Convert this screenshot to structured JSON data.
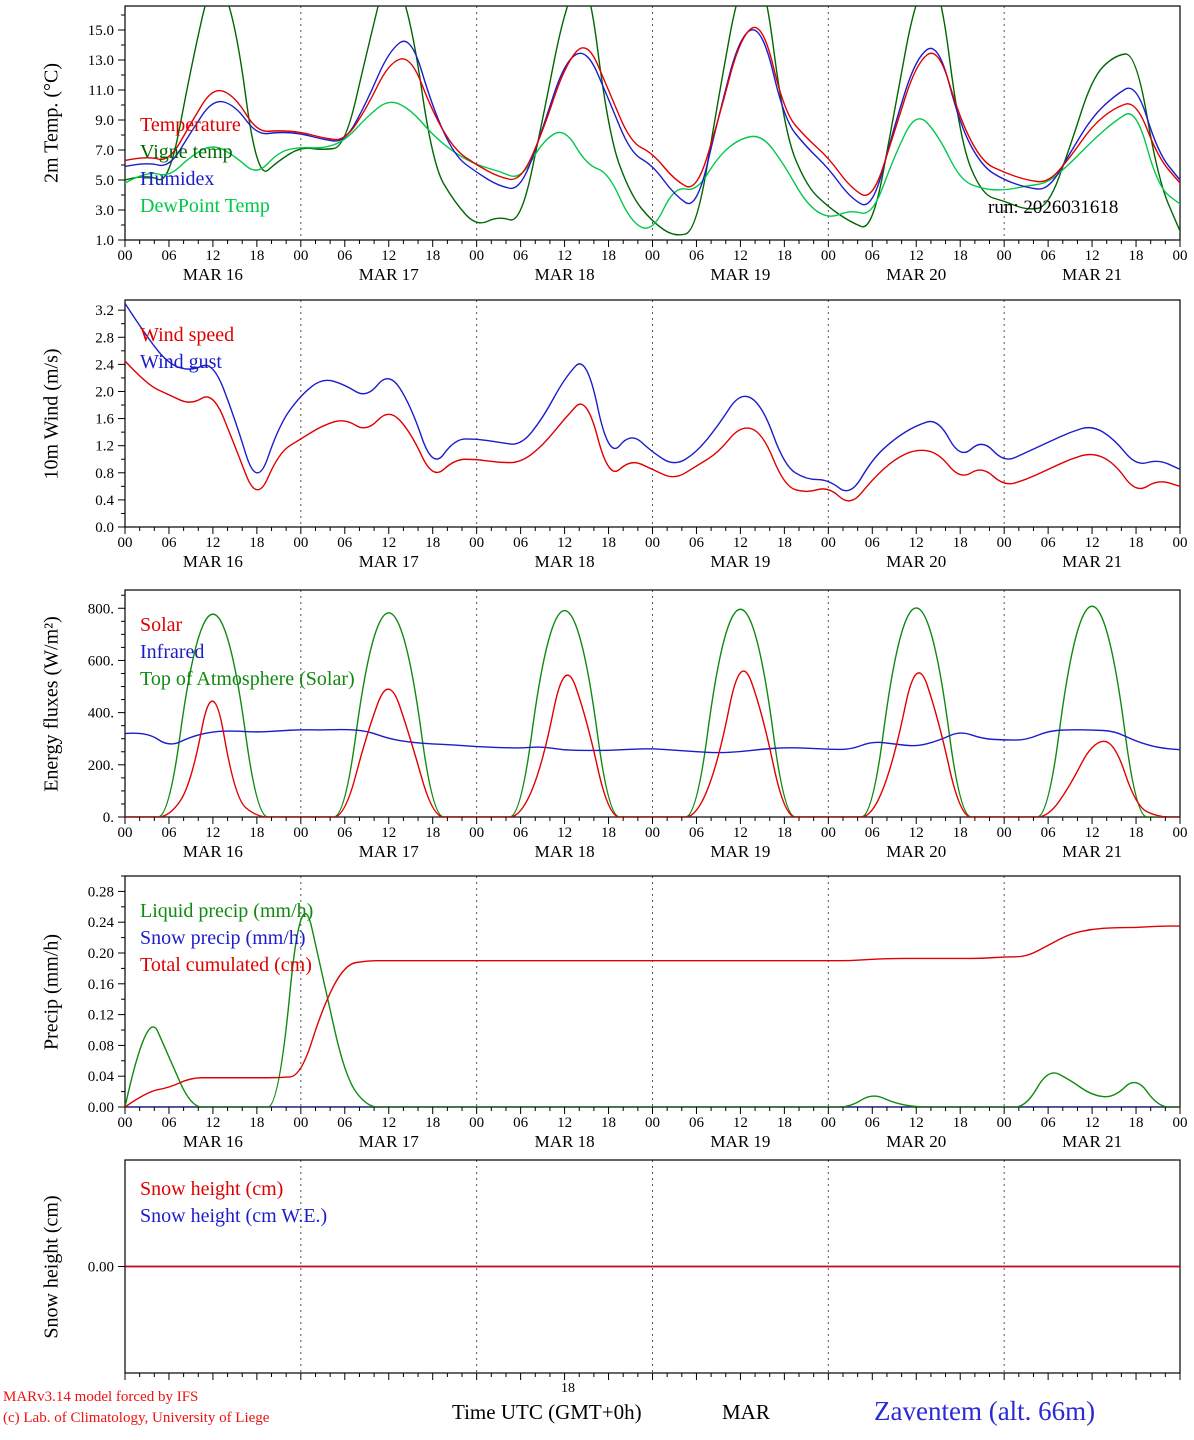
{
  "run_label": "run: 2026031618",
  "footer": {
    "credit_line1": "MARv3.14 model forced by IFS",
    "credit_line2": "(c) Lab. of Climatology, University of Liege",
    "xaxis_title": "Time UTC (GMT+0h)",
    "month_label": "MAR",
    "run_hour": "18",
    "station_label": "Zaventem (alt. 66m)"
  },
  "x_axis": {
    "hours_start": 0,
    "hours_end": 144,
    "x_start": 0,
    "x_step": 3,
    "major_tick_step": 6,
    "minor_tick_step": 2,
    "tick_label_cycle": [
      "00",
      "06",
      "12",
      "18"
    ],
    "day_boundaries": [
      24,
      48,
      72,
      96,
      120
    ],
    "days": [
      {
        "label": "MAR 16",
        "center": 12
      },
      {
        "label": "MAR 17",
        "center": 36
      },
      {
        "label": "MAR 18",
        "center": 60
      },
      {
        "label": "MAR 19",
        "center": 84
      },
      {
        "label": "MAR 20",
        "center": 108
      },
      {
        "label": "MAR 21",
        "center": 132
      }
    ]
  },
  "chart_data": [
    {
      "type": "line",
      "ylabel": "2m Temp. (°C)",
      "ylim": [
        1.0,
        16.6
      ],
      "yticks": [
        1,
        3,
        5,
        7,
        9,
        11,
        13,
        15
      ],
      "ytick_labels": [
        "1.0",
        "3.0",
        "5.0",
        "7.0",
        "9.0",
        "11.0",
        "13.0",
        "15.0"
      ],
      "y_minor_per_gap": 1,
      "legend": [
        {
          "label": "Temperature",
          "color": "#e00000"
        },
        {
          "label": "Vigne temp",
          "color": "#006600"
        },
        {
          "label": "Humidex",
          "color": "#1c1ccc"
        },
        {
          "label": "DewPoint Temp",
          "color": "#00c84b"
        }
      ],
      "series": [
        {
          "name": "vigne_temp",
          "color": "#006600",
          "y": [
            5.0,
            5.4,
            4.7,
            12.5,
            19.0,
            16.0,
            5.0,
            6.3,
            7.2,
            7.0,
            7.2,
            13.5,
            19.5,
            16.0,
            6.0,
            3.5,
            1.9,
            2.6,
            2.1,
            9.0,
            16.5,
            19.5,
            8.0,
            4.0,
            2.2,
            1.2,
            1.6,
            10.5,
            18.5,
            19.5,
            8.2,
            4.6,
            3.2,
            2.2,
            1.6,
            9.5,
            17.5,
            19.0,
            7.5,
            4.0,
            3.6,
            3.0,
            3.2,
            7.2,
            11.8,
            13.3,
            13.5,
            5.0,
            1.6
          ]
        },
        {
          "name": "dewpoint_temp",
          "color": "#00c84b",
          "y": [
            4.8,
            5.6,
            5.2,
            6.6,
            7.4,
            6.6,
            5.3,
            6.9,
            7.2,
            7.1,
            7.6,
            9.2,
            10.4,
            9.7,
            8.0,
            6.8,
            6.0,
            5.6,
            5.0,
            7.6,
            8.5,
            6.0,
            5.5,
            2.2,
            1.5,
            4.6,
            4.2,
            6.6,
            7.8,
            8.0,
            6.0,
            3.4,
            2.4,
            3.0,
            2.6,
            6.6,
            9.6,
            8.0,
            5.0,
            4.4,
            4.3,
            4.6,
            4.8,
            6.1,
            7.6,
            8.9,
            9.8,
            4.5,
            3.4
          ]
        },
        {
          "name": "humidex",
          "color": "#1c1ccc",
          "y": [
            5.9,
            6.2,
            5.8,
            8.2,
            10.4,
            10.0,
            8.0,
            8.2,
            8.1,
            7.7,
            7.5,
            10.2,
            13.6,
            14.7,
            9.8,
            6.6,
            5.5,
            4.6,
            4.3,
            8.4,
            12.9,
            13.8,
            10.4,
            6.8,
            6.0,
            4.0,
            3.0,
            9.2,
            14.8,
            15.2,
            9.0,
            7.2,
            5.8,
            3.8,
            3.0,
            8.6,
            13.2,
            14.2,
            8.6,
            5.9,
            5.0,
            4.5,
            4.3,
            6.8,
            9.2,
            10.6,
            11.5,
            6.8,
            5.0
          ]
        },
        {
          "name": "temperature",
          "color": "#e00000",
          "y": [
            6.3,
            6.6,
            6.2,
            8.8,
            11.2,
            10.6,
            8.2,
            8.3,
            8.2,
            7.8,
            7.6,
            9.8,
            12.8,
            13.3,
            9.5,
            7.0,
            6.0,
            5.2,
            4.9,
            8.2,
            12.6,
            14.4,
            11.0,
            7.5,
            6.8,
            5.0,
            4.2,
            9.0,
            14.6,
            15.6,
            9.5,
            7.8,
            6.5,
            4.5,
            3.6,
            8.2,
            12.8,
            13.9,
            9.0,
            6.2,
            5.5,
            5.0,
            4.8,
            6.5,
            8.6,
            9.8,
            10.3,
            6.5,
            4.8
          ]
        }
      ]
    },
    {
      "type": "line",
      "ylabel": "10m Wind (m/s)",
      "ylim": [
        0.0,
        3.35
      ],
      "yticks": [
        0.0,
        0.4,
        0.8,
        1.2,
        1.6,
        2.0,
        2.4,
        2.8,
        3.2
      ],
      "ytick_labels": [
        "0.0",
        "0.4",
        "0.8",
        "1.2",
        "1.6",
        "2.0",
        "2.4",
        "2.8",
        "3.2"
      ],
      "y_minor_per_gap": 1,
      "legend": [
        {
          "label": "Wind speed",
          "color": "#e00000"
        },
        {
          "label": "Wind gust",
          "color": "#1c1ccc"
        }
      ],
      "series": [
        {
          "name": "wind_gust",
          "color": "#1c1ccc",
          "y": [
            3.3,
            2.8,
            2.4,
            2.3,
            2.45,
            1.6,
            0.55,
            1.5,
            1.95,
            2.2,
            2.1,
            1.9,
            2.3,
            1.8,
            0.85,
            1.3,
            1.3,
            1.25,
            1.2,
            1.6,
            2.2,
            2.55,
            1.0,
            1.4,
            1.1,
            0.9,
            1.1,
            1.5,
            2.0,
            1.8,
            0.9,
            0.7,
            0.7,
            0.45,
            1.0,
            1.3,
            1.5,
            1.6,
            1.0,
            1.3,
            0.95,
            1.1,
            1.25,
            1.4,
            1.5,
            1.3,
            0.9,
            1.0,
            0.85
          ]
        },
        {
          "name": "wind_speed",
          "color": "#e00000",
          "y": [
            2.45,
            2.1,
            1.95,
            1.8,
            2.0,
            1.2,
            0.35,
            1.1,
            1.3,
            1.5,
            1.6,
            1.4,
            1.75,
            1.4,
            0.7,
            1.0,
            1.0,
            0.95,
            0.95,
            1.2,
            1.6,
            1.95,
            0.7,
            1.0,
            0.85,
            0.7,
            0.9,
            1.1,
            1.5,
            1.4,
            0.6,
            0.5,
            0.6,
            0.3,
            0.7,
            1.0,
            1.15,
            1.1,
            0.7,
            0.9,
            0.6,
            0.7,
            0.85,
            1.0,
            1.1,
            0.95,
            0.5,
            0.7,
            0.6
          ]
        }
      ]
    },
    {
      "type": "line",
      "ylabel": "Energy fluxes (W/m²)",
      "ylim": [
        0,
        870
      ],
      "yticks": [
        0,
        200,
        400,
        600,
        800
      ],
      "ytick_labels": [
        "0.",
        "200.",
        "400.",
        "600.",
        "800."
      ],
      "y_minor_per_gap": 3,
      "legend": [
        {
          "label": "Solar",
          "color": "#e00000"
        },
        {
          "label": "Infrared",
          "color": "#1c1ccc"
        },
        {
          "label": "Top of Atmosphere (Solar)",
          "color": "#0f8a0f"
        }
      ],
      "series": [
        {
          "name": "top_of_atmosphere_solar",
          "color": "#0f8a0f",
          "y": [
            0,
            0,
            0,
            620,
            830,
            620,
            0,
            0,
            0,
            0,
            0,
            625,
            835,
            625,
            0,
            0,
            0,
            0,
            0,
            630,
            845,
            630,
            0,
            0,
            0,
            0,
            0,
            635,
            850,
            635,
            0,
            0,
            0,
            0,
            0,
            640,
            855,
            640,
            0,
            0,
            0,
            0,
            0,
            645,
            862,
            645,
            0,
            0,
            0
          ]
        },
        {
          "name": "infrared",
          "color": "#1c1ccc",
          "y": [
            320,
            327,
            268,
            308,
            328,
            330,
            325,
            330,
            335,
            333,
            336,
            330,
            300,
            286,
            280,
            276,
            270,
            266,
            264,
            270,
            256,
            255,
            255,
            260,
            262,
            256,
            250,
            246,
            250,
            260,
            266,
            264,
            260,
            258,
            290,
            280,
            270,
            292,
            330,
            300,
            295,
            295,
            330,
            335,
            333,
            330,
            290,
            265,
            258
          ]
        },
        {
          "name": "solar",
          "color": "#e00000",
          "y": [
            0,
            0,
            0,
            120,
            560,
            70,
            0,
            0,
            0,
            0,
            0,
            320,
            550,
            300,
            0,
            0,
            0,
            0,
            0,
            200,
            620,
            380,
            0,
            0,
            0,
            0,
            0,
            210,
            635,
            400,
            0,
            0,
            0,
            0,
            0,
            220,
            630,
            380,
            0,
            0,
            0,
            0,
            0,
            120,
            285,
            295,
            40,
            0,
            0
          ]
        }
      ]
    },
    {
      "type": "line",
      "ylabel": "Precip (mm/h)",
      "ylim": [
        0.0,
        0.3
      ],
      "yticks": [
        0.0,
        0.04,
        0.08,
        0.12,
        0.16,
        0.2,
        0.24,
        0.28
      ],
      "ytick_labels": [
        "0.00",
        "0.04",
        "0.08",
        "0.12",
        "0.16",
        "0.20",
        "0.24",
        "0.28"
      ],
      "y_minor_per_gap": 1,
      "legend": [
        {
          "label": "Liquid precip (mm/h)",
          "color": "#0f8a0f"
        },
        {
          "label": "Snow precip (mm/h)",
          "color": "#1c1ccc"
        },
        {
          "label": "Total cumulated (cm)",
          "color": "#e00000"
        }
      ],
      "series": [
        {
          "name": "snow_precip",
          "color": "#1c1ccc",
          "y": [
            0,
            0,
            0,
            0,
            0,
            0,
            0,
            0,
            0,
            0,
            0,
            0,
            0,
            0,
            0,
            0,
            0,
            0,
            0,
            0,
            0,
            0,
            0,
            0,
            0,
            0,
            0,
            0,
            0,
            0,
            0,
            0,
            0,
            0,
            0,
            0,
            0,
            0,
            0,
            0,
            0,
            0,
            0,
            0,
            0,
            0,
            0,
            0,
            0
          ]
        },
        {
          "name": "liquid_precip",
          "color": "#0f8a0f",
          "y": [
            0,
            0.13,
            0.065,
            0,
            0,
            0,
            0,
            0,
            0.295,
            0.17,
            0.04,
            0,
            0,
            0,
            0,
            0,
            0,
            0,
            0,
            0,
            0,
            0,
            0,
            0,
            0,
            0,
            0,
            0,
            0,
            0,
            0,
            0,
            0,
            0,
            0.018,
            0.005,
            0,
            0,
            0,
            0,
            0,
            0,
            0.05,
            0.035,
            0.015,
            0.012,
            0.04,
            0,
            0
          ]
        },
        {
          "name": "total_cumulated",
          "color": "#e00000",
          "y": [
            0,
            0.02,
            0.025,
            0.038,
            0.038,
            0.038,
            0.038,
            0.038,
            0.04,
            0.13,
            0.185,
            0.19,
            0.19,
            0.19,
            0.19,
            0.19,
            0.19,
            0.19,
            0.19,
            0.19,
            0.19,
            0.19,
            0.19,
            0.19,
            0.19,
            0.19,
            0.19,
            0.19,
            0.19,
            0.19,
            0.19,
            0.19,
            0.19,
            0.19,
            0.192,
            0.193,
            0.193,
            0.193,
            0.193,
            0.193,
            0.195,
            0.195,
            0.21,
            0.225,
            0.231,
            0.233,
            0.233,
            0.235,
            0.235
          ]
        }
      ]
    },
    {
      "type": "line",
      "ylabel": "Snow height (cm)",
      "ylim": [
        -1.0,
        1.0
      ],
      "yticks": [
        0.0
      ],
      "ytick_labels": [
        "0.00"
      ],
      "y_minor_per_gap": 0,
      "show_x_labels": false,
      "legend": [
        {
          "label": "Snow height (cm)",
          "color": "#e00000"
        },
        {
          "label": "Snow height (cm W.E.)",
          "color": "#1c1ccc"
        }
      ],
      "series": [
        {
          "name": "snow_height_we",
          "color": "#1c1ccc",
          "y": [
            0,
            0,
            0,
            0,
            0,
            0,
            0,
            0,
            0,
            0,
            0,
            0,
            0,
            0,
            0,
            0,
            0,
            0,
            0,
            0,
            0,
            0,
            0,
            0,
            0,
            0,
            0,
            0,
            0,
            0,
            0,
            0,
            0,
            0,
            0,
            0,
            0,
            0,
            0,
            0,
            0,
            0,
            0,
            0,
            0,
            0,
            0,
            0,
            0
          ]
        },
        {
          "name": "snow_height",
          "color": "#e00000",
          "y": [
            0,
            0,
            0,
            0,
            0,
            0,
            0,
            0,
            0,
            0,
            0,
            0,
            0,
            0,
            0,
            0,
            0,
            0,
            0,
            0,
            0,
            0,
            0,
            0,
            0,
            0,
            0,
            0,
            0,
            0,
            0,
            0,
            0,
            0,
            0,
            0,
            0,
            0,
            0,
            0,
            0,
            0,
            0,
            0,
            0,
            0,
            0,
            0,
            0
          ]
        }
      ]
    }
  ]
}
